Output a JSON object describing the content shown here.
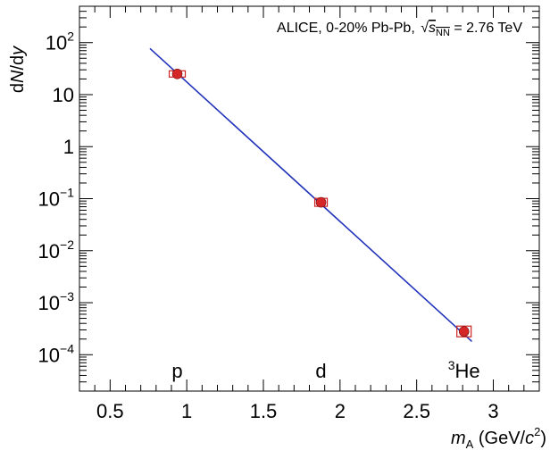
{
  "chart_data": {
    "type": "scatter",
    "title": "",
    "annotation": {
      "prefix": "ALICE, 0-20% Pb-Pb, ",
      "sqrt_s_var": "s",
      "sqrt_s_sub": "NN",
      "suffix": " = 2.76 TeV"
    },
    "xlabel": {
      "var": "m",
      "sub": "A",
      "unit_prefix": " (GeV/",
      "unit_var": "c",
      "unit_sup": "2",
      "unit_suffix": ")"
    },
    "ylabel": {
      "prefix": "d",
      "var": "N",
      "suffix": "/d",
      "var2": "y"
    },
    "xlim": [
      0.3,
      3.3
    ],
    "ylim": [
      2e-05,
      500
    ],
    "yscale": "log",
    "x_ticks": [
      {
        "value": 0.5,
        "label": "0.5"
      },
      {
        "value": 1.0,
        "label": "1"
      },
      {
        "value": 1.5,
        "label": "1.5"
      },
      {
        "value": 2.0,
        "label": "2"
      },
      {
        "value": 2.5,
        "label": "2.5"
      },
      {
        "value": 3.0,
        "label": "3"
      }
    ],
    "y_ticks": [
      {
        "value": 0.0001,
        "base": "10",
        "exp": "−4"
      },
      {
        "value": 0.001,
        "base": "10",
        "exp": "−3"
      },
      {
        "value": 0.01,
        "base": "10",
        "exp": "−2"
      },
      {
        "value": 0.1,
        "base": "10",
        "exp": "−1"
      },
      {
        "value": 1,
        "base": "1",
        "exp": ""
      },
      {
        "value": 10,
        "base": "10",
        "exp": ""
      },
      {
        "value": 100,
        "base": "10",
        "exp": "2"
      }
    ],
    "points": [
      {
        "species": "p",
        "sup": "",
        "x": 0.938,
        "y": 25.0
      },
      {
        "species": "d",
        "sup": "",
        "x": 1.876,
        "y": 0.085
      },
      {
        "species": "He",
        "sup": "3",
        "x": 2.809,
        "y": 0.00028
      }
    ],
    "fit": {
      "type": "exponential",
      "x_range": [
        0.76,
        2.86
      ],
      "y_start": 77.0,
      "y_end": 0.00018
    },
    "colors": {
      "marker": "#d62728",
      "marker_edge": "#ffffff",
      "sys_box": "#cc2222",
      "fit": "#2233bb",
      "axis": "#000000"
    },
    "grid": false,
    "legend": "none"
  }
}
